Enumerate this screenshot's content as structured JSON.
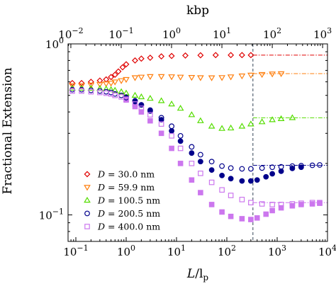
{
  "chart_data": {
    "type": "scatter",
    "xlabel": "L/l_p",
    "xlabel_main": "L",
    "xlabel_sub": "p",
    "xlabel_sep": "/l",
    "ylabel": "Fractional Extension",
    "top_xlabel": "kbp",
    "xscale": "log",
    "yscale": "log",
    "xlim": [
      0.07,
      10000
    ],
    "ylim": [
      0.07,
      1.0
    ],
    "top_xlim": [
      0.0088,
      1250
    ],
    "x_ticks": [
      {
        "value": 0.1,
        "mant": "10",
        "exp": "−1"
      },
      {
        "value": 1,
        "mant": "10",
        "exp": "0"
      },
      {
        "value": 10,
        "mant": "10",
        "exp": "1"
      },
      {
        "value": 100,
        "mant": "10",
        "exp": "2"
      },
      {
        "value": 1000,
        "mant": "10",
        "exp": "3"
      },
      {
        "value": 10000,
        "mant": "10",
        "exp": "4"
      }
    ],
    "top_ticks": [
      {
        "value": 0.01,
        "mant": "10",
        "exp": "−2"
      },
      {
        "value": 0.1,
        "mant": "10",
        "exp": "−1"
      },
      {
        "value": 1,
        "mant": "10",
        "exp": "0"
      },
      {
        "value": 10,
        "mant": "10",
        "exp": "1"
      },
      {
        "value": 100,
        "mant": "10",
        "exp": "2"
      },
      {
        "value": 1000,
        "mant": "10",
        "exp": "3"
      }
    ],
    "y_ticks": [
      {
        "value": 0.1,
        "mant": "10",
        "exp": "−1"
      },
      {
        "value": 1,
        "mant": "10",
        "exp": "0"
      }
    ],
    "vertical_line_x": 330,
    "legend_position": "lower-left",
    "series": [
      {
        "name": "D = 30.0 nm",
        "legend_prefix": "D",
        "legend_value": " = 30.0 nm",
        "marker": "diamond-open",
        "color": "#e00000",
        "asymptote": 0.86,
        "points": [
          [
            0.085,
            0.59
          ],
          [
            0.13,
            0.59
          ],
          [
            0.2,
            0.6
          ],
          [
            0.3,
            0.61
          ],
          [
            0.4,
            0.62
          ],
          [
            0.5,
            0.64
          ],
          [
            0.6,
            0.66
          ],
          [
            0.7,
            0.69
          ],
          [
            0.85,
            0.73
          ],
          [
            1.0,
            0.76
          ],
          [
            1.5,
            0.8
          ],
          [
            2,
            0.82
          ],
          [
            3,
            0.83
          ],
          [
            5,
            0.845
          ],
          [
            8,
            0.85
          ],
          [
            15,
            0.855
          ],
          [
            30,
            0.858
          ],
          [
            60,
            0.86
          ],
          [
            120,
            0.86
          ],
          [
            200,
            0.86
          ],
          [
            300,
            0.86
          ]
        ]
      },
      {
        "name": "D = 59.9 nm",
        "legend_prefix": "D",
        "legend_value": " = 59.9 nm",
        "marker": "triangle-down-open",
        "color": "#ff7f0e",
        "asymptote": 0.67,
        "points": [
          [
            0.085,
            0.57
          ],
          [
            0.13,
            0.57
          ],
          [
            0.2,
            0.575
          ],
          [
            0.3,
            0.58
          ],
          [
            0.4,
            0.585
          ],
          [
            0.5,
            0.59
          ],
          [
            0.6,
            0.6
          ],
          [
            0.8,
            0.61
          ],
          [
            1.0,
            0.62
          ],
          [
            1.5,
            0.635
          ],
          [
            2,
            0.64
          ],
          [
            3,
            0.645
          ],
          [
            5,
            0.645
          ],
          [
            8,
            0.643
          ],
          [
            12,
            0.64
          ],
          [
            20,
            0.637
          ],
          [
            30,
            0.635
          ],
          [
            50,
            0.634
          ],
          [
            80,
            0.636
          ],
          [
            120,
            0.642
          ],
          [
            200,
            0.65
          ],
          [
            300,
            0.657
          ],
          [
            500,
            0.663
          ],
          [
            800,
            0.668
          ],
          [
            1200,
            0.67
          ]
        ]
      },
      {
        "name": "D = 100.5 nm",
        "legend_prefix": "D",
        "legend_value": " = 100.5 nm",
        "marker": "triangle-up-open",
        "color": "#55dd00",
        "asymptote": 0.37,
        "points": [
          [
            0.085,
            0.55
          ],
          [
            0.13,
            0.55
          ],
          [
            0.2,
            0.55
          ],
          [
            0.3,
            0.548
          ],
          [
            0.4,
            0.545
          ],
          [
            0.5,
            0.54
          ],
          [
            0.6,
            0.535
          ],
          [
            0.8,
            0.525
          ],
          [
            1.0,
            0.515
          ],
          [
            1.5,
            0.5
          ],
          [
            2,
            0.49
          ],
          [
            3,
            0.48
          ],
          [
            5,
            0.465
          ],
          [
            8,
            0.445
          ],
          [
            12,
            0.42
          ],
          [
            20,
            0.385
          ],
          [
            30,
            0.355
          ],
          [
            50,
            0.33
          ],
          [
            80,
            0.32
          ],
          [
            120,
            0.322
          ],
          [
            200,
            0.33
          ],
          [
            300,
            0.34
          ],
          [
            500,
            0.35
          ],
          [
            800,
            0.36
          ],
          [
            1200,
            0.365
          ],
          [
            2000,
            0.37
          ]
        ]
      },
      {
        "name": "D = 200.5 nm",
        "legend_prefix": "D",
        "legend_value": " = 200.5 nm",
        "marker": "circle-open",
        "color": "#00008b",
        "asymptote": 0.195,
        "points": [
          [
            0.085,
            0.54
          ],
          [
            0.13,
            0.54
          ],
          [
            0.2,
            0.535
          ],
          [
            0.3,
            0.53
          ],
          [
            0.4,
            0.525
          ],
          [
            0.5,
            0.52
          ],
          [
            0.6,
            0.51
          ],
          [
            0.8,
            0.5
          ],
          [
            1.0,
            0.485
          ],
          [
            1.5,
            0.46
          ],
          [
            2,
            0.44
          ],
          [
            3,
            0.41
          ],
          [
            5,
            0.37
          ],
          [
            8,
            0.33
          ],
          [
            12,
            0.29
          ],
          [
            20,
            0.25
          ],
          [
            30,
            0.225
          ],
          [
            50,
            0.205
          ],
          [
            80,
            0.193
          ],
          [
            120,
            0.188
          ],
          [
            200,
            0.186
          ],
          [
            300,
            0.186
          ],
          [
            500,
            0.188
          ],
          [
            800,
            0.19
          ],
          [
            1200,
            0.191
          ],
          [
            2000,
            0.193
          ],
          [
            3000,
            0.194
          ],
          [
            5000,
            0.195
          ],
          [
            7000,
            0.196
          ]
        ]
      },
      {
        "name": "D = 400.0 nm",
        "legend_prefix": "D",
        "legend_value": " = 400.0 nm",
        "marker": "square-open",
        "color": "#cc77ee",
        "asymptote": 0.118,
        "points": [
          [
            0.085,
            0.53
          ],
          [
            0.13,
            0.53
          ],
          [
            0.2,
            0.525
          ],
          [
            0.3,
            0.52
          ],
          [
            0.4,
            0.515
          ],
          [
            0.5,
            0.51
          ],
          [
            0.6,
            0.5
          ],
          [
            0.8,
            0.49
          ],
          [
            1.0,
            0.475
          ],
          [
            1.5,
            0.445
          ],
          [
            2,
            0.42
          ],
          [
            3,
            0.385
          ],
          [
            5,
            0.34
          ],
          [
            8,
            0.29
          ],
          [
            12,
            0.245
          ],
          [
            20,
            0.2
          ],
          [
            30,
            0.175
          ],
          [
            50,
            0.155
          ],
          [
            80,
            0.14
          ],
          [
            120,
            0.13
          ],
          [
            200,
            0.123
          ],
          [
            300,
            0.118
          ],
          [
            500,
            0.116
          ],
          [
            800,
            0.115
          ],
          [
            1200,
            0.115
          ],
          [
            2000,
            0.116
          ],
          [
            3000,
            0.117
          ],
          [
            5000,
            0.118
          ],
          [
            7000,
            0.118
          ]
        ]
      }
    ],
    "filled_series": [
      {
        "color": "#00008b",
        "marker": "circle-filled",
        "points": [
          [
            1.0,
            0.49
          ],
          [
            1.5,
            0.465
          ],
          [
            2,
            0.44
          ],
          [
            3,
            0.405
          ],
          [
            5,
            0.36
          ],
          [
            8,
            0.31
          ],
          [
            12,
            0.27
          ],
          [
            20,
            0.23
          ],
          [
            30,
            0.205
          ],
          [
            50,
            0.183
          ],
          [
            80,
            0.17
          ],
          [
            120,
            0.163
          ],
          [
            200,
            0.158
          ],
          [
            300,
            0.158
          ],
          [
            400,
            0.16
          ],
          [
            600,
            0.167
          ],
          [
            800,
            0.174
          ],
          [
            1200,
            0.18
          ],
          [
            2000,
            0.187
          ],
          [
            3000,
            0.19
          ]
        ]
      },
      {
        "color": "#cc77ee",
        "marker": "square-filled",
        "points": [
          [
            1.0,
            0.47
          ],
          [
            1.5,
            0.43
          ],
          [
            2,
            0.4
          ],
          [
            3,
            0.355
          ],
          [
            5,
            0.3
          ],
          [
            8,
            0.245
          ],
          [
            12,
            0.2
          ],
          [
            20,
            0.16
          ],
          [
            30,
            0.135
          ],
          [
            50,
            0.115
          ],
          [
            80,
            0.104
          ],
          [
            120,
            0.098
          ],
          [
            200,
            0.095
          ],
          [
            300,
            0.094
          ],
          [
            400,
            0.096
          ],
          [
            600,
            0.101
          ],
          [
            800,
            0.106
          ],
          [
            1200,
            0.11
          ],
          [
            2000,
            0.113
          ],
          [
            3000,
            0.115
          ],
          [
            5000,
            0.116
          ],
          [
            7000,
            0.117
          ]
        ]
      }
    ]
  }
}
